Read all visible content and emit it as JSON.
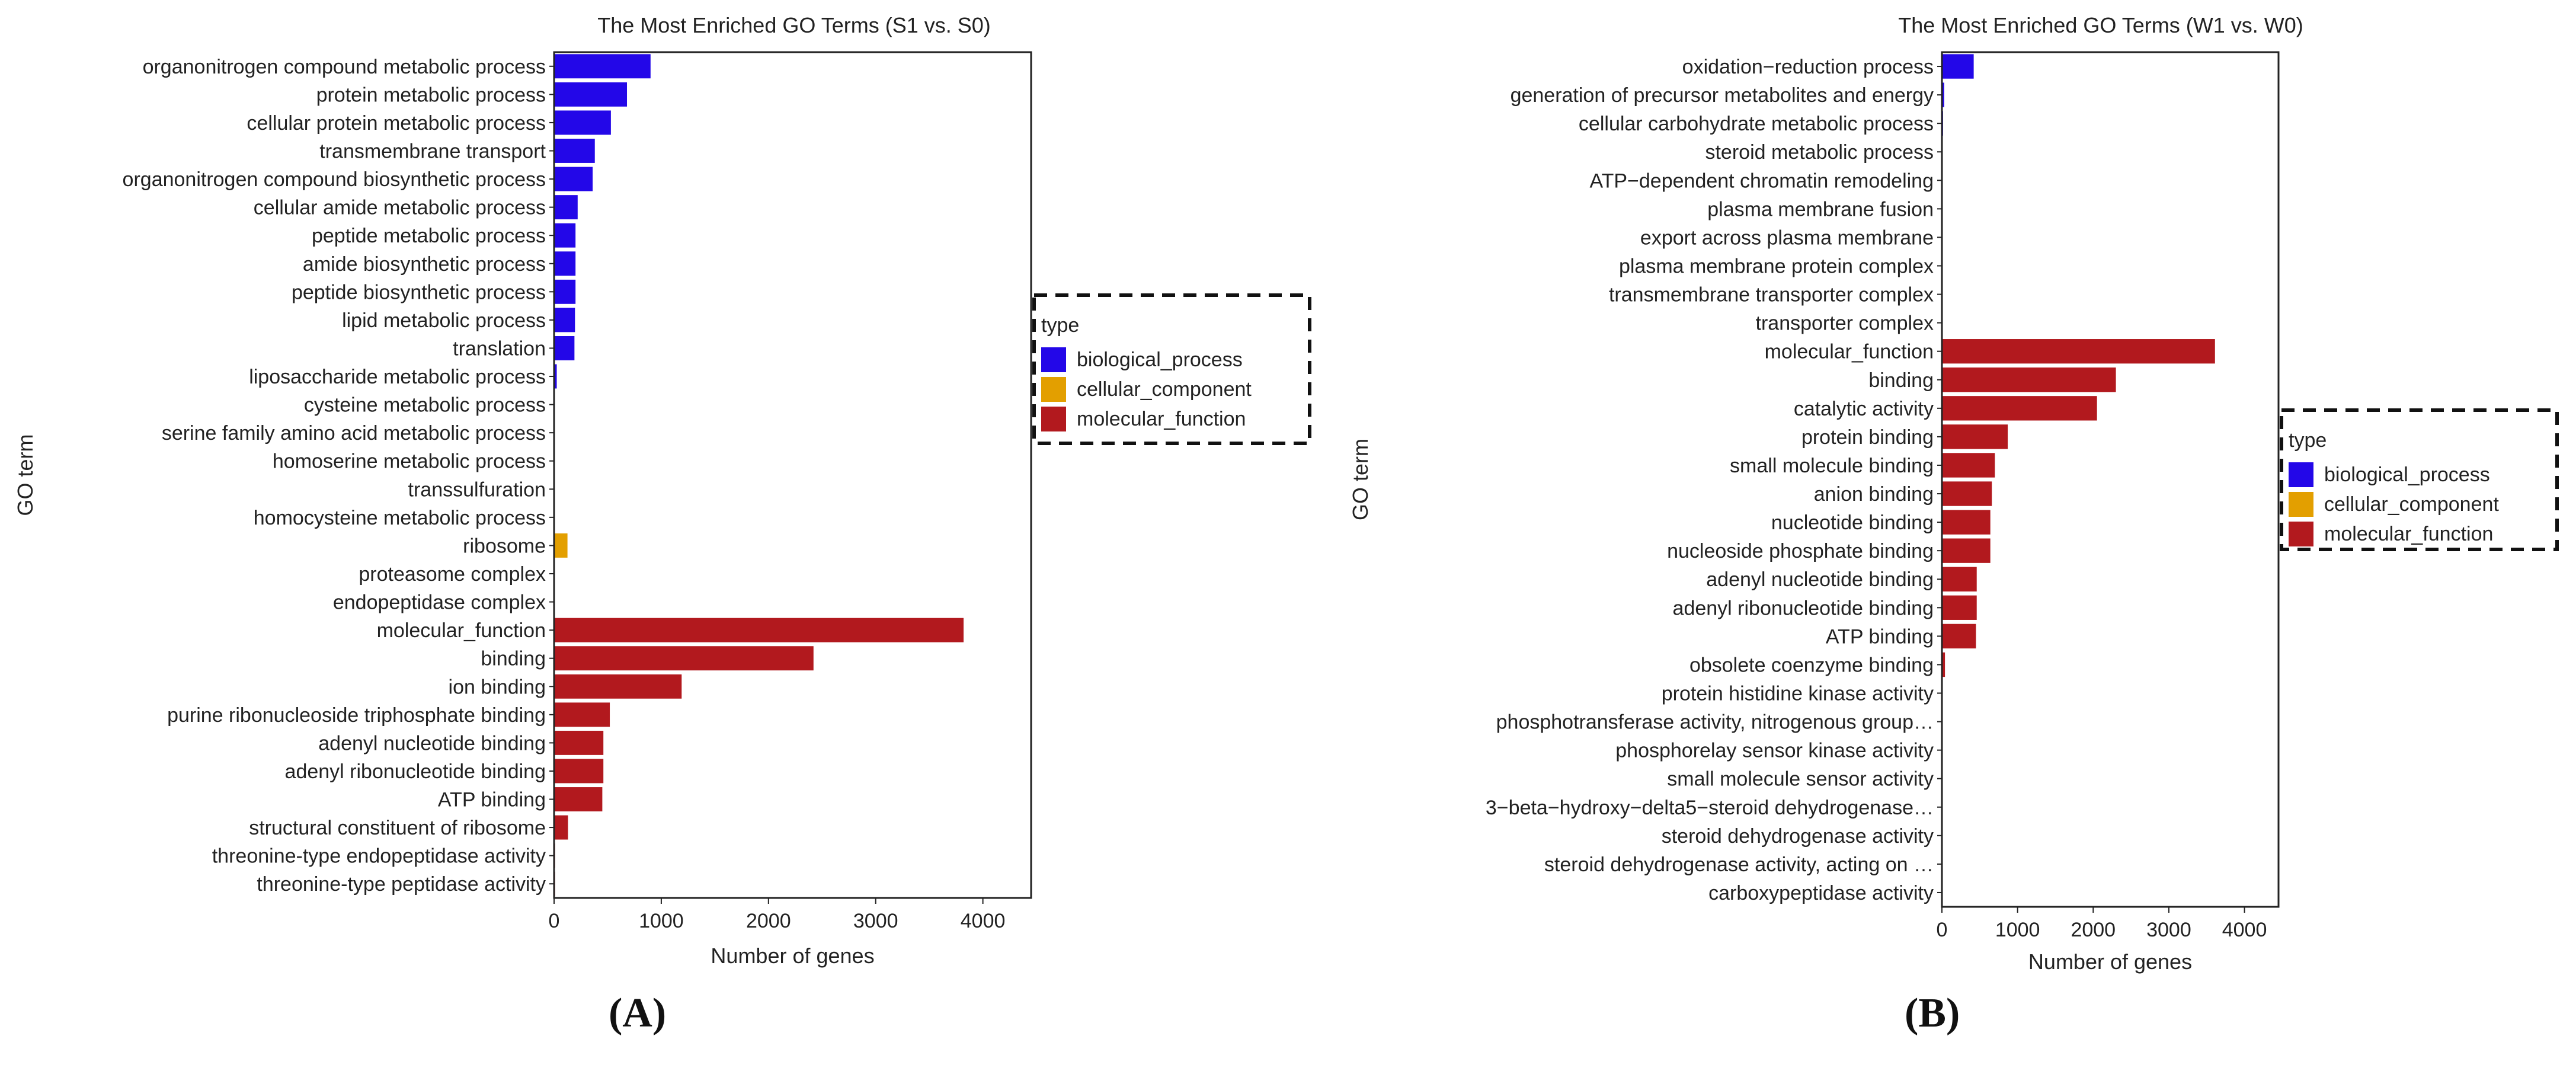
{
  "chart_data": [
    {
      "type": "bar",
      "orientation": "horizontal",
      "title": "The Most Enriched GO Terms (S1 vs. S0)",
      "xlabel": "Number of genes",
      "ylabel": "GO term",
      "xlim": [
        0,
        4450
      ],
      "xticks": [
        0,
        1000,
        2000,
        3000,
        4000
      ],
      "xtick_labels": [
        "0",
        "1000",
        "2000",
        "3000",
        "4000"
      ],
      "legend_title": "type",
      "legend_entries": [
        "biological_process",
        "cellular_component",
        "molecular_function"
      ],
      "legend_position": "right",
      "colors": {
        "biological_process": "#2307e8",
        "cellular_component": "#e39f00",
        "molecular_function": "#b2191e"
      },
      "categories": [
        "organonitrogen compound metabolic process",
        "protein metabolic process",
        "cellular protein metabolic process",
        "transmembrane transport",
        "organonitrogen compound biosynthetic process",
        "cellular amide metabolic process",
        "peptide metabolic process",
        "amide biosynthetic process",
        "peptide biosynthetic process",
        "lipid metabolic process",
        "translation",
        "liposaccharide metabolic process",
        "cysteine metabolic process",
        "serine family amino acid metabolic process",
        "homoserine metabolic process",
        "transsulfuration",
        "homocysteine metabolic process",
        "ribosome",
        "proteasome complex",
        "endopeptidase complex",
        "molecular_function",
        "binding",
        "ion binding",
        "purine ribonucleoside triphosphate binding",
        "adenyl nucleotide binding",
        "adenyl ribonucleotide binding",
        "ATP binding",
        "structural constituent of ribosome",
        "threonine-type endopeptidase activity",
        "threonine-type peptidase activity"
      ],
      "values": [
        900,
        680,
        530,
        380,
        360,
        220,
        200,
        200,
        200,
        195,
        190,
        25,
        8,
        8,
        6,
        6,
        6,
        125,
        8,
        8,
        3820,
        2420,
        1190,
        520,
        460,
        460,
        450,
        130,
        10,
        10
      ],
      "types": [
        "biological_process",
        "biological_process",
        "biological_process",
        "biological_process",
        "biological_process",
        "biological_process",
        "biological_process",
        "biological_process",
        "biological_process",
        "biological_process",
        "biological_process",
        "biological_process",
        "biological_process",
        "biological_process",
        "biological_process",
        "biological_process",
        "biological_process",
        "cellular_component",
        "cellular_component",
        "cellular_component",
        "molecular_function",
        "molecular_function",
        "molecular_function",
        "molecular_function",
        "molecular_function",
        "molecular_function",
        "molecular_function",
        "molecular_function",
        "molecular_function",
        "molecular_function"
      ],
      "panel_label": "(A)"
    },
    {
      "type": "bar",
      "orientation": "horizontal",
      "title": "The Most Enriched GO Terms (W1 vs. W0)",
      "xlabel": "Number of genes",
      "ylabel": "GO term",
      "xlim": [
        0,
        4450
      ],
      "xticks": [
        0,
        1000,
        2000,
        3000,
        4000
      ],
      "xtick_labels": [
        "0",
        "1000",
        "2000",
        "3000",
        "4000"
      ],
      "legend_title": "type",
      "legend_entries": [
        "biological_process",
        "cellular_component",
        "molecular_function"
      ],
      "legend_position": "right",
      "colors": {
        "biological_process": "#2307e8",
        "cellular_component": "#e39f00",
        "molecular_function": "#b2191e"
      },
      "categories": [
        "oxidation−reduction process",
        "generation of precursor metabolites and energy",
        "cellular carbohydrate metabolic process",
        "steroid metabolic process",
        "ATP−dependent chromatin remodeling",
        "plasma membrane fusion",
        "export across plasma membrane",
        "plasma membrane protein complex",
        "transmembrane transporter complex",
        "transporter complex",
        "molecular_function",
        "binding",
        "catalytic activity",
        "protein binding",
        "small molecule binding",
        "anion binding",
        "nucleotide binding",
        "nucleoside phosphate binding",
        "adenyl nucleotide binding",
        "adenyl ribonucleotide binding",
        "ATP binding",
        "obsolete coenzyme binding",
        "protein histidine kinase activity",
        "phosphotransferase activity, nitrogenous group…",
        "phosphorelay sensor kinase activity",
        "small molecule sensor activity",
        "3−beta−hydroxy−delta5−steroid dehydrogenase…",
        "steroid dehydrogenase activity",
        "steroid dehydrogenase activity, acting on …",
        "carboxypeptidase activity"
      ],
      "values": [
        420,
        30,
        15,
        10,
        8,
        8,
        8,
        8,
        8,
        8,
        3610,
        2300,
        2050,
        870,
        700,
        660,
        640,
        640,
        460,
        460,
        450,
        40,
        8,
        8,
        8,
        8,
        8,
        8,
        8,
        8
      ],
      "types": [
        "biological_process",
        "biological_process",
        "biological_process",
        "biological_process",
        "biological_process",
        "biological_process",
        "biological_process",
        "cellular_component",
        "cellular_component",
        "cellular_component",
        "molecular_function",
        "molecular_function",
        "molecular_function",
        "molecular_function",
        "molecular_function",
        "molecular_function",
        "molecular_function",
        "molecular_function",
        "molecular_function",
        "molecular_function",
        "molecular_function",
        "molecular_function",
        "molecular_function",
        "molecular_function",
        "molecular_function",
        "molecular_function",
        "molecular_function",
        "molecular_function",
        "molecular_function",
        "molecular_function"
      ],
      "panel_label": "(B)"
    }
  ]
}
